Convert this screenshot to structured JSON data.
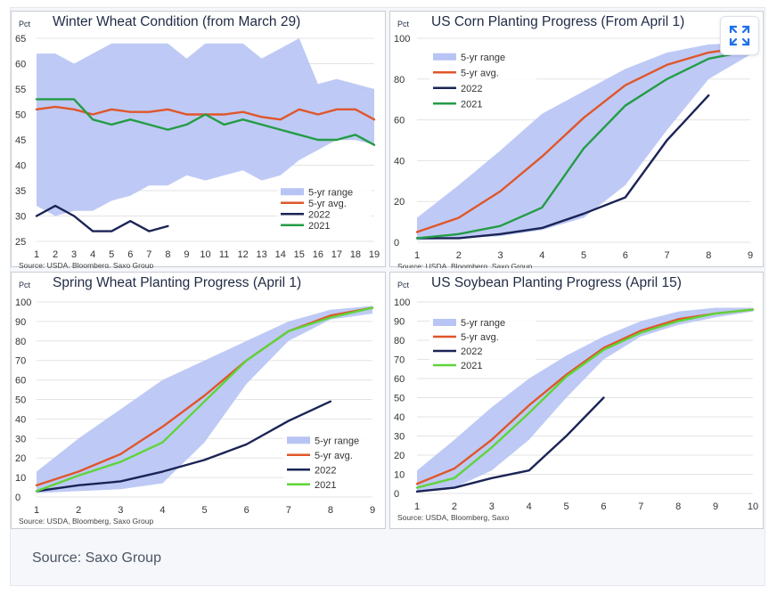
{
  "colors": {
    "range": "#b7c4f4",
    "avg": "#e0562b",
    "y2022": "#1b2456",
    "y2021_dark": "#249c46",
    "y2021_light": "#5fd43a"
  },
  "expand_icon": "expand-icon",
  "caption": "Source: Saxo Group",
  "charts": [
    {
      "type": "line",
      "title": "Winter Wheat Condition (from March 29)",
      "ylabel": "Pct",
      "source": "Source: USDA, Bloomberg, Saxo Group",
      "x": [
        1,
        2,
        3,
        4,
        5,
        6,
        7,
        8,
        9,
        10,
        11,
        12,
        13,
        14,
        15,
        16,
        17,
        18,
        19
      ],
      "xlim": [
        1,
        19
      ],
      "ylim": [
        25,
        65
      ],
      "yticks": [
        25,
        30,
        35,
        40,
        45,
        50,
        55,
        60,
        65
      ],
      "legend": "bottom-right",
      "band": {
        "name": "5-yr range",
        "lower": [
          32,
          30,
          31,
          31,
          33,
          34,
          36,
          36,
          38,
          37,
          38,
          39,
          37,
          38,
          41,
          43,
          45,
          45,
          44
        ],
        "upper": [
          62,
          62,
          60,
          62,
          64,
          64,
          64,
          64,
          61,
          64,
          64,
          64,
          61,
          63,
          65,
          56,
          57,
          56,
          55
        ]
      },
      "series": [
        {
          "name": "5-yr avg.",
          "color_key": "avg",
          "values": [
            51,
            51.5,
            51,
            50,
            51,
            50.5,
            50.5,
            51,
            50,
            50,
            50,
            50.5,
            49.5,
            49,
            51,
            50,
            51,
            51,
            49
          ]
        },
        {
          "name": "2022",
          "color_key": "y2022",
          "values": [
            30,
            32,
            30,
            27,
            27,
            29,
            27,
            28
          ]
        },
        {
          "name": "2021",
          "color_key": "y2021_dark",
          "values": [
            53,
            53,
            53,
            49,
            48,
            49,
            48,
            47,
            48,
            50,
            48,
            49,
            48,
            47,
            46,
            45,
            45,
            46,
            44
          ]
        }
      ]
    },
    {
      "type": "line",
      "title": "US Corn Planting Progress (From April 1)",
      "ylabel": "Pct",
      "source": "Source: USDA, Bloomberg, Saxo Group",
      "x": [
        1,
        2,
        3,
        4,
        5,
        6,
        7,
        8,
        9
      ],
      "xlim": [
        1,
        9
      ],
      "ylim": [
        0,
        100
      ],
      "yticks": [
        0,
        20,
        40,
        60,
        80,
        100
      ],
      "legend": "top-left",
      "band": {
        "name": "5-yr range",
        "lower": [
          1,
          2,
          3,
          6,
          12,
          28,
          55,
          80,
          92
        ],
        "upper": [
          12,
          28,
          45,
          63,
          74,
          85,
          93,
          97,
          98
        ]
      },
      "series": [
        {
          "name": "5-yr avg.",
          "color_key": "avg",
          "values": [
            5,
            12,
            25,
            42,
            61,
            77,
            87,
            93,
            96
          ]
        },
        {
          "name": "2022",
          "color_key": "y2022",
          "values": [
            2,
            2,
            4,
            7,
            14,
            22,
            50,
            72
          ]
        },
        {
          "name": "2021",
          "color_key": "y2021_dark",
          "values": [
            2,
            4,
            8,
            17,
            46,
            67,
            80,
            90,
            94
          ]
        }
      ]
    },
    {
      "type": "line",
      "title": "Spring Wheat Planting Progress (April 1)",
      "ylabel": "Pct",
      "source": "Source: USDA, Bloomberg, Saxo Group",
      "x": [
        1,
        2,
        3,
        4,
        5,
        6,
        7,
        8,
        9
      ],
      "xlim": [
        1,
        9
      ],
      "ylim": [
        0,
        100
      ],
      "yticks": [
        0,
        10,
        20,
        30,
        40,
        50,
        60,
        70,
        80,
        90,
        100
      ],
      "legend": "bottom-right",
      "band": {
        "name": "5-yr range",
        "lower": [
          2,
          3,
          4,
          7,
          28,
          58,
          80,
          91,
          94
        ],
        "upper": [
          13,
          30,
          45,
          60,
          70,
          80,
          90,
          96,
          98
        ]
      },
      "series": [
        {
          "name": "5-yr avg.",
          "color_key": "avg",
          "values": [
            6,
            13,
            22,
            36,
            52,
            70,
            85,
            93,
            97
          ]
        },
        {
          "name": "2022",
          "color_key": "y2022",
          "values": [
            3,
            6,
            8,
            13,
            19,
            27,
            39,
            49
          ]
        },
        {
          "name": "2021",
          "color_key": "y2021_light",
          "values": [
            3,
            11,
            18,
            28,
            49,
            70,
            85,
            92,
            97
          ]
        }
      ]
    },
    {
      "type": "line",
      "title": "US Soybean Planting Progress (April 15)",
      "ylabel": "Pct",
      "source": "Source: USDA, Bloomberg, Saxo",
      "x": [
        1,
        2,
        3,
        4,
        5,
        6,
        7,
        8,
        9,
        10
      ],
      "xlim": [
        1,
        10
      ],
      "ylim": [
        0,
        100
      ],
      "yticks": [
        0,
        10,
        20,
        30,
        40,
        50,
        60,
        70,
        80,
        90,
        100
      ],
      "legend": "top-left",
      "band": {
        "name": "5-yr range",
        "lower": [
          1,
          3,
          12,
          28,
          50,
          70,
          82,
          88,
          92,
          95
        ],
        "upper": [
          12,
          28,
          45,
          60,
          72,
          82,
          90,
          95,
          97,
          97
        ]
      },
      "series": [
        {
          "name": "5-yr avg.",
          "color_key": "avg",
          "values": [
            5,
            13,
            28,
            46,
            62,
            76,
            85,
            91,
            94,
            96
          ]
        },
        {
          "name": "2022",
          "color_key": "y2022",
          "values": [
            1,
            3,
            8,
            12,
            30,
            50
          ]
        },
        {
          "name": "2021",
          "color_key": "y2021_light",
          "values": [
            3,
            8,
            24,
            42,
            61,
            75,
            84,
            90,
            94,
            96
          ]
        }
      ]
    }
  ]
}
